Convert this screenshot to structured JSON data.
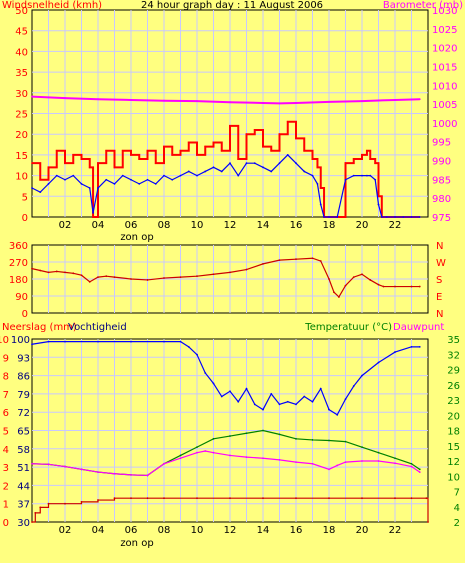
{
  "title": "24 hour graph day : 11 August 2006",
  "colors": {
    "background": "#FFFF80",
    "grid": "#C8C8FF",
    "wind_gust": "#FF0000",
    "wind_avg": "#0000FF",
    "barometer": "#FF00FF",
    "direction": "#CC0000",
    "rain": "#CC0000",
    "humidity": "#0000FF",
    "temperature": "#008000",
    "dewpoint": "#FF00FF",
    "left_axis_text": "#FF0000",
    "right_axis_text": "#FF00FF",
    "green_text": "#008000",
    "purple_text": "#660066"
  },
  "x_ticks": [
    "02",
    "04",
    "06",
    "08",
    "10",
    "12",
    "14",
    "16",
    "18",
    "20",
    "22"
  ],
  "sunrise_label": "zon op",
  "chart_data": [
    {
      "id": "wind",
      "type": "line",
      "y_left_label": "Windsnelheid (kmh)",
      "y_right_label": "Barometer (mb)",
      "y_left_ticks": [
        "50",
        "45",
        "40",
        "35",
        "30",
        "25",
        "20",
        "15",
        "10",
        "5",
        "0"
      ],
      "y_right_ticks": [
        "1030",
        "1025",
        "1020",
        "1015",
        "1010",
        "1005",
        "1000",
        "995",
        "990",
        "985",
        "980",
        "975"
      ],
      "ylim_left": [
        0,
        50
      ],
      "ylim_right": [
        975,
        1030
      ],
      "xlim": [
        0,
        24
      ],
      "series": [
        {
          "role": "gust",
          "axis": "left",
          "x": [
            0,
            0.5,
            1,
            1.5,
            2,
            2.5,
            3,
            3.5,
            3.7,
            4,
            4.5,
            5,
            5.5,
            6,
            6.5,
            7,
            7.5,
            8,
            8.5,
            9,
            9.5,
            10,
            10.5,
            11,
            11.5,
            12,
            12.5,
            13,
            13.5,
            14,
            14.5,
            15,
            15.5,
            16,
            16.5,
            17,
            17.3,
            17.5,
            17.7,
            18,
            18.5,
            19,
            19.5,
            20,
            20.3,
            20.5,
            20.8,
            21,
            21.2,
            21.5,
            22,
            22.5,
            23,
            23.5
          ],
          "values": [
            13,
            9,
            12,
            16,
            13,
            15,
            14,
            12,
            0,
            13,
            16,
            12,
            16,
            15,
            14,
            16,
            13,
            17,
            15,
            16,
            18,
            15,
            17,
            18,
            16,
            22,
            14,
            20,
            21,
            17,
            16,
            20,
            23,
            19,
            16,
            14,
            12,
            7,
            0,
            0,
            0,
            13,
            14,
            15,
            16,
            14,
            13,
            5,
            0,
            0,
            0,
            0,
            0,
            0
          ]
        },
        {
          "role": "average",
          "axis": "left",
          "x": [
            0,
            0.5,
            1,
            1.5,
            2,
            2.5,
            3,
            3.5,
            3.7,
            4,
            4.5,
            5,
            5.5,
            6,
            6.5,
            7,
            7.5,
            8,
            8.5,
            9,
            9.5,
            10,
            10.5,
            11,
            11.5,
            12,
            12.5,
            13,
            13.5,
            14,
            14.5,
            15,
            15.5,
            16,
            16.5,
            17,
            17.3,
            17.5,
            17.7,
            18,
            18.5,
            19,
            19.5,
            20,
            20.3,
            20.5,
            20.8,
            21,
            21.2,
            21.5,
            22,
            22.5,
            23,
            23.5
          ],
          "values": [
            7,
            6,
            8,
            10,
            9,
            10,
            8,
            7,
            1,
            7,
            9,
            8,
            10,
            9,
            8,
            9,
            8,
            10,
            9,
            10,
            11,
            10,
            11,
            12,
            11,
            13,
            10,
            13,
            13,
            12,
            11,
            13,
            15,
            13,
            11,
            10,
            8,
            3,
            0,
            0,
            0,
            9,
            10,
            10,
            10,
            10,
            9,
            3,
            0,
            0,
            0,
            0,
            0,
            0
          ]
        },
        {
          "role": "barometer",
          "axis": "right",
          "x": [
            0,
            2,
            4,
            6,
            8,
            10,
            12,
            14,
            15,
            16,
            18,
            20,
            22,
            23.5
          ],
          "values": [
            1007,
            1006.6,
            1006.3,
            1006.1,
            1005.9,
            1005.8,
            1005.5,
            1005.3,
            1005.2,
            1005.3,
            1005.6,
            1005.8,
            1006.1,
            1006.3
          ]
        }
      ]
    },
    {
      "id": "direction",
      "type": "line",
      "y_left_ticks": [
        "360",
        "270",
        "180",
        "90",
        "0"
      ],
      "y_right_ticks": [
        "N",
        "W",
        "S",
        "E",
        "N"
      ],
      "ylim_left": [
        0,
        360
      ],
      "xlim": [
        0,
        24
      ],
      "series": [
        {
          "role": "direction",
          "x": [
            0,
            0.5,
            1,
            1.5,
            2,
            2.5,
            3,
            3.5,
            4,
            4.5,
            5,
            6,
            7,
            8,
            9,
            10,
            11,
            12,
            13,
            14,
            15,
            16,
            17,
            17.5,
            18,
            18.3,
            18.6,
            19,
            19.5,
            20,
            20.5,
            21,
            21.3,
            22,
            23,
            23.5
          ],
          "values": [
            235,
            225,
            215,
            220,
            215,
            210,
            200,
            165,
            190,
            195,
            190,
            180,
            175,
            185,
            190,
            195,
            205,
            215,
            230,
            260,
            280,
            285,
            290,
            275,
            180,
            110,
            85,
            145,
            190,
            205,
            175,
            150,
            140,
            140,
            140,
            140
          ]
        }
      ]
    },
    {
      "id": "humidity_temp",
      "type": "line",
      "y_left_label": "Neerslag (mm)",
      "y_left2_label": "Vochtigheid",
      "y_right_label": "Temperatuur (°C)",
      "y_right2_label": "Dauwpunt",
      "y_left_ticks": [
        "10",
        "9",
        "8",
        "7",
        "6",
        "5",
        "4",
        "3",
        "2",
        "1",
        "0"
      ],
      "y_left2_ticks": [
        "100",
        "93",
        "86",
        "79",
        "72",
        "65",
        "58",
        "51",
        "44",
        "37",
        "30"
      ],
      "y_right_ticks": [
        "35",
        "32",
        "29",
        "26",
        "23",
        "20",
        "18",
        "15",
        "12",
        "10",
        "7",
        "4",
        "2"
      ],
      "xlim": [
        0,
        24
      ],
      "series": [
        {
          "role": "rain",
          "axis": "left",
          "ylim": [
            0,
            10
          ],
          "x": [
            0,
            0.2,
            0.5,
            1,
            2,
            3,
            4,
            5,
            6,
            7,
            8,
            10,
            12,
            14,
            16,
            18,
            20,
            22,
            23,
            23.9,
            24
          ],
          "values": [
            0,
            0.5,
            0.8,
            1.0,
            1.0,
            1.1,
            1.2,
            1.3,
            1.3,
            1.3,
            1.3,
            1.3,
            1.3,
            1.3,
            1.3,
            1.3,
            1.3,
            1.3,
            1.3,
            1.3,
            0
          ]
        },
        {
          "role": "humidity",
          "axis": "left2",
          "ylim": [
            30,
            100
          ],
          "x": [
            0,
            1,
            2,
            4,
            6,
            8,
            9,
            9.5,
            10,
            10.5,
            11,
            11.5,
            12,
            12.5,
            13,
            13.5,
            14,
            14.5,
            15,
            15.5,
            16,
            16.5,
            17,
            17.5,
            18,
            18.5,
            19,
            19.5,
            20,
            21,
            22,
            23,
            23.5
          ],
          "values": [
            98,
            99,
            99,
            99,
            99,
            99,
            99,
            97,
            94,
            87,
            83,
            78,
            80,
            76,
            81,
            75,
            73,
            79,
            75,
            76,
            75,
            78,
            76,
            81,
            73,
            71,
            77,
            82,
            86,
            91,
            95,
            97,
            97
          ]
        },
        {
          "role": "temperature",
          "axis": "right",
          "ylim": [
            2,
            35
          ],
          "x": [
            0,
            1,
            2,
            3,
            4,
            5,
            6,
            7,
            8,
            9,
            10,
            11,
            12,
            13,
            14,
            15,
            16,
            17,
            18,
            19,
            20,
            21,
            22,
            23,
            23.5
          ],
          "values": [
            12.5,
            12.4,
            12,
            11.5,
            11,
            10.7,
            10.5,
            10.4,
            12.5,
            14,
            15.5,
            17,
            17.5,
            18,
            18.5,
            17.8,
            17,
            16.8,
            16.7,
            16.5,
            15.5,
            14.5,
            13.5,
            12.5,
            11.5
          ]
        },
        {
          "role": "dewpoint",
          "axis": "right",
          "ylim": [
            2,
            35
          ],
          "x": [
            0,
            1,
            2,
            3,
            4,
            5,
            6,
            7,
            8,
            9,
            10,
            10.5,
            11,
            12,
            13,
            14,
            15,
            16,
            17,
            18,
            18.5,
            19,
            20,
            21,
            22,
            23,
            23.5
          ],
          "values": [
            12.5,
            12.4,
            12,
            11.5,
            11,
            10.7,
            10.5,
            10.4,
            12.5,
            13.5,
            14.5,
            14.8,
            14.5,
            14,
            13.7,
            13.5,
            13.2,
            12.8,
            12.5,
            11.5,
            12.2,
            12.8,
            13,
            13,
            12.6,
            12,
            11
          ]
        }
      ]
    }
  ]
}
